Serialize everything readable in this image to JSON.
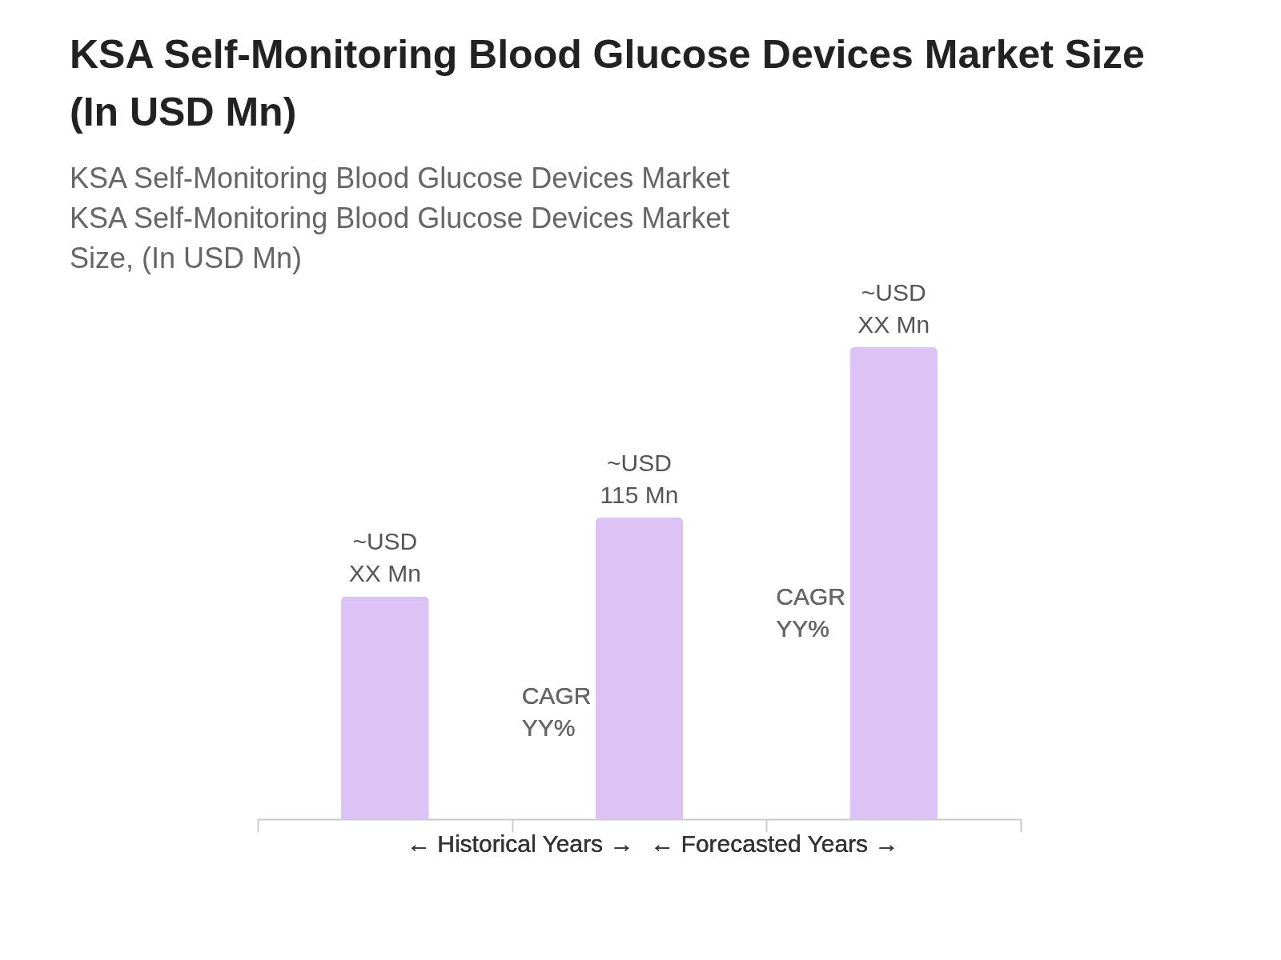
{
  "chart_data": {
    "type": "bar",
    "title": "KSA Self-Monitoring Blood Glucose Devices Market Size (In USD Mn)",
    "subtitle": [
      "KSA Self-Monitoring Blood Glucose Devices Market",
      "KSA Self-Monitoring Blood Glucose Devices Market",
      "Size, (In USD Mn)"
    ],
    "categories": [
      null,
      null,
      null
    ],
    "values": [
      85,
      115,
      180
    ],
    "color": "#dcc2f5",
    "value_labels": [
      "~USD\nXX Mn",
      "~USD\n115 Mn",
      "~USD\nXX Mn"
    ],
    "tick_labels": false,
    "annotations": [
      "CAGR\nYY%",
      "CAGR\nYY%",
      "← Historical Years →",
      "← Forecasted Years →"
    ]
  }
}
